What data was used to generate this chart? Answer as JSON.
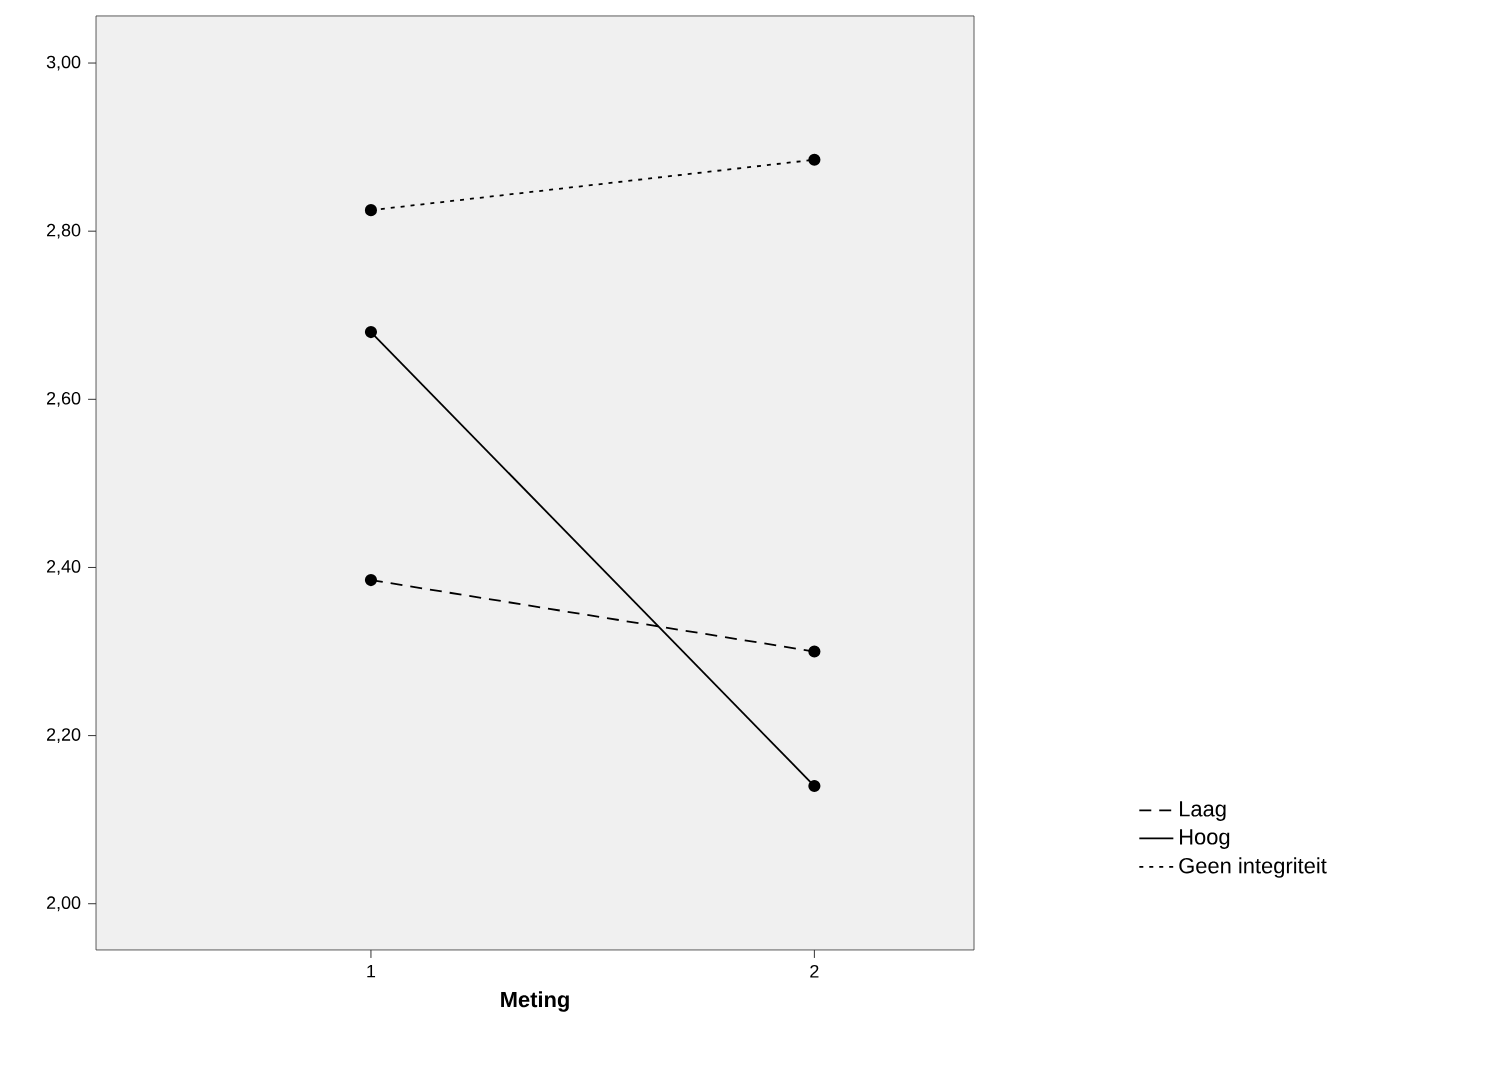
{
  "chart_data": {
    "type": "line",
    "xlabel": "Meting",
    "x": [
      1,
      2
    ],
    "series": [
      {
        "name": "Laag",
        "color": "#000000",
        "values": [
          2.385,
          2.3
        ],
        "line_style": "dashed"
      },
      {
        "name": "Hoog",
        "color": "#000000",
        "values": [
          2.68,
          2.14
        ],
        "line_style": "solid"
      },
      {
        "name": "Geen integriteit",
        "color": "#000000",
        "values": [
          2.825,
          2.885
        ],
        "line_style": "dotted"
      }
    ],
    "xlim": [
      0.38,
      2.36
    ],
    "xticks": [
      1,
      2
    ],
    "ylim": [
      1.945,
      3.056
    ],
    "yticks": [
      {
        "value": 2.0,
        "label": "2,00"
      },
      {
        "value": 2.2,
        "label": "2,20"
      },
      {
        "value": 2.4,
        "label": "2,40"
      },
      {
        "value": 2.6,
        "label": "2,60"
      },
      {
        "value": 2.8,
        "label": "2,80"
      },
      {
        "value": 3.0,
        "label": "3,00"
      }
    ],
    "grid": false,
    "legend": "right",
    "marker": "circle"
  }
}
